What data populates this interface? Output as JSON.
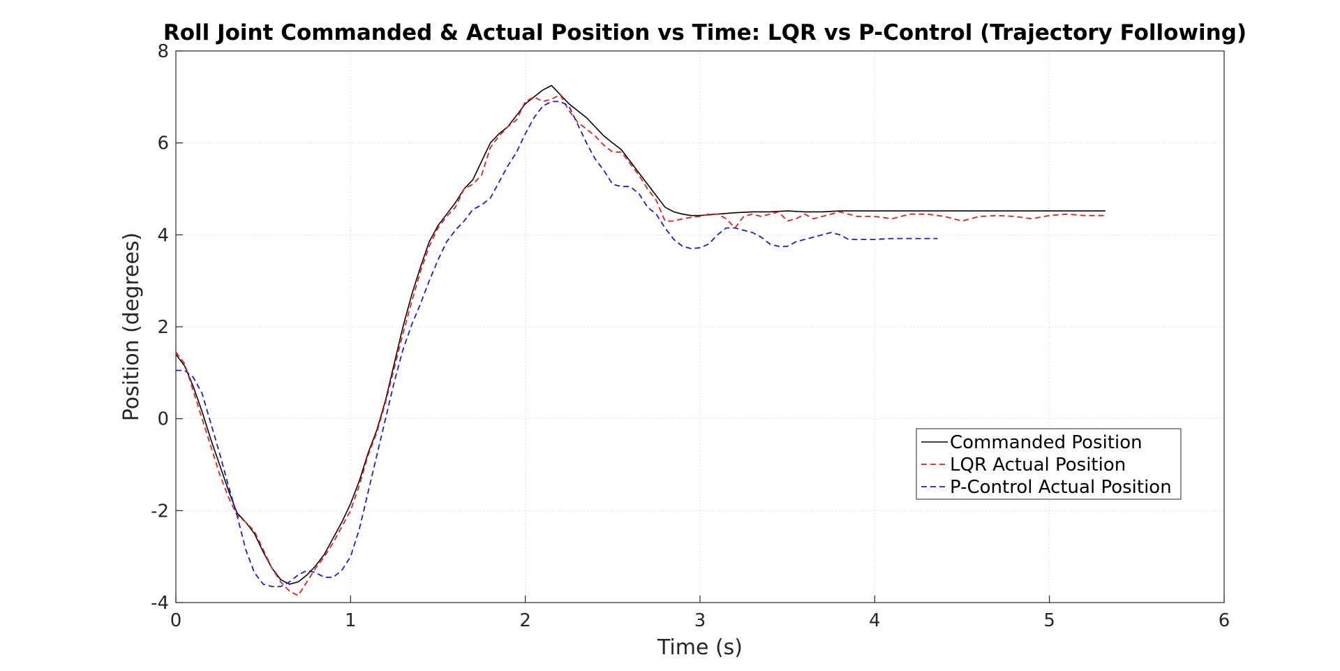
{
  "chart_data": {
    "type": "line",
    "title": "Roll Joint Commanded & Actual Position vs Time: LQR vs P-Control (Trajectory Following)",
    "xlabel": "Time (s)",
    "ylabel": "Position (degrees)",
    "xlim": [
      0,
      6
    ],
    "ylim": [
      -4,
      8
    ],
    "xticks": [
      "0",
      "1",
      "2",
      "3",
      "4",
      "5",
      "6"
    ],
    "yticks": [
      "-4",
      "-2",
      "0",
      "2",
      "4",
      "6",
      "8"
    ],
    "grid": true,
    "legend_position": "lower-right",
    "series": [
      {
        "name": "Commanded Position",
        "color": "#000000",
        "style": "solid",
        "x": [
          0,
          0.05,
          0.1,
          0.15,
          0.2,
          0.25,
          0.3,
          0.35,
          0.4,
          0.45,
          0.5,
          0.55,
          0.6,
          0.65,
          0.7,
          0.75,
          0.8,
          0.85,
          0.9,
          0.95,
          1.0,
          1.05,
          1.1,
          1.15,
          1.2,
          1.25,
          1.3,
          1.35,
          1.4,
          1.45,
          1.5,
          1.55,
          1.6,
          1.65,
          1.7,
          1.75,
          1.8,
          1.85,
          1.9,
          1.95,
          2.0,
          2.05,
          2.1,
          2.15,
          2.2,
          2.25,
          2.3,
          2.35,
          2.4,
          2.45,
          2.5,
          2.55,
          2.6,
          2.65,
          2.7,
          2.75,
          2.8,
          2.85,
          2.9,
          2.95,
          3.0,
          3.1,
          3.2,
          3.3,
          3.4,
          3.5,
          3.6,
          3.7,
          3.8,
          4.0,
          4.5,
          5.0,
          5.32
        ],
        "y": [
          1.4,
          1.15,
          0.7,
          0.15,
          -0.45,
          -1.0,
          -1.55,
          -2.05,
          -2.25,
          -2.5,
          -2.9,
          -3.25,
          -3.5,
          -3.6,
          -3.55,
          -3.4,
          -3.2,
          -2.95,
          -2.6,
          -2.25,
          -1.85,
          -1.35,
          -0.75,
          -0.25,
          0.4,
          1.2,
          2.0,
          2.7,
          3.3,
          3.85,
          4.2,
          4.45,
          4.7,
          5.0,
          5.2,
          5.6,
          6.0,
          6.2,
          6.35,
          6.6,
          6.85,
          7.0,
          7.15,
          7.25,
          7.05,
          6.85,
          6.7,
          6.55,
          6.35,
          6.15,
          6.0,
          5.85,
          5.6,
          5.35,
          5.1,
          4.85,
          4.6,
          4.5,
          4.45,
          4.42,
          4.42,
          4.45,
          4.48,
          4.5,
          4.5,
          4.52,
          4.5,
          4.5,
          4.52,
          4.52,
          4.52,
          4.52,
          4.52
        ]
      },
      {
        "name": "LQR Actual Position",
        "color": "#e0201c",
        "style": "dashed",
        "x": [
          0,
          0.05,
          0.1,
          0.15,
          0.2,
          0.25,
          0.3,
          0.35,
          0.4,
          0.45,
          0.5,
          0.55,
          0.6,
          0.65,
          0.7,
          0.75,
          0.8,
          0.85,
          0.9,
          0.95,
          1.0,
          1.05,
          1.1,
          1.15,
          1.2,
          1.25,
          1.3,
          1.35,
          1.4,
          1.45,
          1.5,
          1.55,
          1.6,
          1.65,
          1.7,
          1.75,
          1.8,
          1.85,
          1.9,
          1.95,
          2.0,
          2.05,
          2.1,
          2.15,
          2.2,
          2.25,
          2.3,
          2.35,
          2.4,
          2.45,
          2.5,
          2.55,
          2.6,
          2.65,
          2.7,
          2.75,
          2.8,
          2.85,
          2.9,
          2.95,
          3.0,
          3.05,
          3.1,
          3.15,
          3.2,
          3.25,
          3.3,
          3.35,
          3.4,
          3.45,
          3.5,
          3.55,
          3.6,
          3.65,
          3.7,
          3.75,
          3.8,
          3.9,
          4.0,
          4.1,
          4.2,
          4.3,
          4.4,
          4.5,
          4.6,
          4.7,
          4.8,
          4.9,
          5.0,
          5.1,
          5.2,
          5.32
        ],
        "y": [
          1.45,
          1.2,
          0.6,
          0.0,
          -0.6,
          -1.2,
          -1.7,
          -2.1,
          -2.25,
          -2.45,
          -2.85,
          -3.25,
          -3.55,
          -3.75,
          -3.85,
          -3.55,
          -3.25,
          -3.0,
          -2.7,
          -2.35,
          -2.0,
          -1.45,
          -0.8,
          -0.3,
          0.35,
          1.1,
          1.85,
          2.55,
          3.2,
          3.75,
          4.15,
          4.4,
          4.6,
          5.0,
          5.1,
          5.3,
          5.9,
          6.15,
          6.35,
          6.5,
          6.9,
          7.0,
          6.9,
          6.95,
          7.05,
          6.7,
          6.45,
          6.3,
          6.15,
          5.95,
          5.8,
          5.8,
          5.55,
          5.3,
          5.0,
          4.75,
          4.3,
          4.3,
          4.35,
          4.38,
          4.4,
          4.45,
          4.45,
          4.35,
          4.15,
          4.4,
          4.45,
          4.4,
          4.45,
          4.5,
          4.3,
          4.35,
          4.45,
          4.35,
          4.4,
          4.45,
          4.5,
          4.4,
          4.4,
          4.35,
          4.45,
          4.45,
          4.4,
          4.3,
          4.4,
          4.42,
          4.4,
          4.35,
          4.42,
          4.45,
          4.42,
          4.42
        ]
      },
      {
        "name": "P-Control Actual Position",
        "color": "#1c1ccc",
        "style": "dashed",
        "x": [
          0,
          0.05,
          0.1,
          0.15,
          0.2,
          0.25,
          0.3,
          0.35,
          0.4,
          0.45,
          0.5,
          0.55,
          0.6,
          0.65,
          0.7,
          0.75,
          0.8,
          0.85,
          0.9,
          0.95,
          1.0,
          1.05,
          1.1,
          1.15,
          1.2,
          1.25,
          1.3,
          1.35,
          1.4,
          1.45,
          1.5,
          1.55,
          1.6,
          1.65,
          1.7,
          1.75,
          1.8,
          1.85,
          1.9,
          1.95,
          2.0,
          2.05,
          2.1,
          2.15,
          2.2,
          2.25,
          2.3,
          2.35,
          2.4,
          2.45,
          2.5,
          2.55,
          2.6,
          2.65,
          2.7,
          2.75,
          2.8,
          2.85,
          2.9,
          2.95,
          3.0,
          3.05,
          3.1,
          3.15,
          3.2,
          3.25,
          3.3,
          3.35,
          3.4,
          3.45,
          3.5,
          3.55,
          3.6,
          3.65,
          3.7,
          3.75,
          3.8,
          3.85,
          3.9,
          4.0,
          4.1,
          4.2,
          4.3,
          4.36
        ],
        "y": [
          1.05,
          1.05,
          0.9,
          0.55,
          -0.1,
          -0.75,
          -1.45,
          -2.1,
          -2.85,
          -3.35,
          -3.6,
          -3.65,
          -3.65,
          -3.55,
          -3.4,
          -3.3,
          -3.35,
          -3.45,
          -3.45,
          -3.3,
          -3.0,
          -2.4,
          -1.6,
          -0.8,
          0.0,
          0.8,
          1.5,
          2.05,
          2.5,
          3.0,
          3.45,
          3.85,
          4.1,
          4.3,
          4.55,
          4.65,
          4.8,
          5.15,
          5.5,
          5.8,
          6.2,
          6.55,
          6.8,
          6.9,
          6.9,
          6.8,
          6.4,
          6.0,
          5.65,
          5.4,
          5.1,
          5.05,
          5.05,
          4.9,
          4.6,
          4.45,
          4.15,
          3.9,
          3.75,
          3.7,
          3.72,
          3.8,
          4.0,
          4.15,
          4.15,
          4.1,
          4.05,
          3.95,
          3.8,
          3.75,
          3.75,
          3.85,
          3.9,
          3.95,
          4.0,
          4.05,
          4.0,
          3.9,
          3.9,
          3.9,
          3.92,
          3.92,
          3.92,
          3.92
        ]
      }
    ]
  }
}
